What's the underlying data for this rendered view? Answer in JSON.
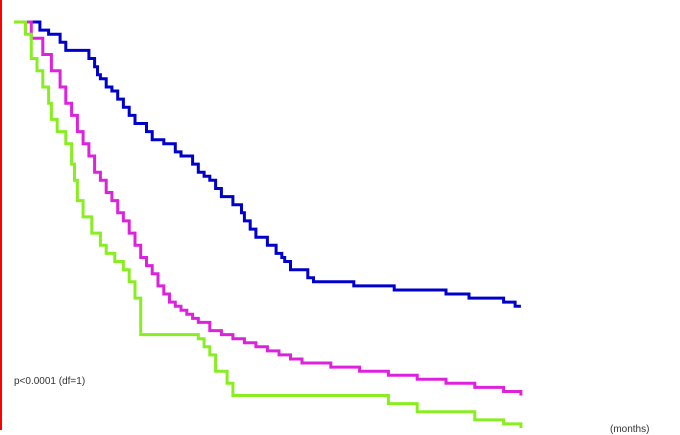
{
  "chart_data": {
    "type": "line",
    "step": true,
    "title": "",
    "xlabel": "(months)",
    "ylabel": "",
    "annotation": "p<0.0001 (df=1)",
    "xlim": [
      0,
      100
    ],
    "ylim": [
      0,
      1
    ],
    "grid": false,
    "axis_color": "#ff0000",
    "series": [
      {
        "color": "#0000cc",
        "x": [
          0,
          4.5,
          6,
          8,
          9,
          13,
          14,
          14.5,
          15,
          16,
          17,
          18,
          19,
          20,
          21,
          23,
          24,
          26,
          28,
          29,
          31,
          32,
          33,
          34,
          35,
          36,
          38,
          39.5,
          40,
          41,
          42,
          44,
          45.5,
          46.5,
          47,
          48,
          51,
          52,
          59,
          61,
          66,
          68,
          75,
          79,
          83,
          85,
          87,
          88
        ],
        "y": [
          1.0,
          0.98,
          0.97,
          0.95,
          0.93,
          0.91,
          0.89,
          0.87,
          0.86,
          0.84,
          0.83,
          0.81,
          0.79,
          0.77,
          0.75,
          0.73,
          0.71,
          0.7,
          0.68,
          0.67,
          0.65,
          0.63,
          0.62,
          0.61,
          0.59,
          0.57,
          0.55,
          0.53,
          0.51,
          0.49,
          0.47,
          0.45,
          0.43,
          0.42,
          0.41,
          0.39,
          0.37,
          0.36,
          0.35,
          0.35,
          0.34,
          0.34,
          0.33,
          0.32,
          0.32,
          0.31,
          0.3,
          0.3
        ]
      },
      {
        "color": "#dd22dd",
        "x": [
          0,
          3,
          5,
          6.5,
          8,
          9,
          10,
          11,
          12,
          13,
          14,
          15,
          16,
          17,
          18,
          19,
          20,
          21,
          22,
          23,
          24,
          25,
          26,
          27,
          28,
          29,
          30,
          31,
          32,
          34,
          36,
          38,
          40,
          42,
          44,
          46,
          48,
          50,
          55,
          60,
          65,
          70,
          75,
          80,
          85,
          88
        ],
        "y": [
          1.0,
          0.96,
          0.92,
          0.88,
          0.84,
          0.8,
          0.77,
          0.73,
          0.7,
          0.67,
          0.63,
          0.61,
          0.58,
          0.56,
          0.53,
          0.51,
          0.48,
          0.45,
          0.42,
          0.4,
          0.38,
          0.35,
          0.33,
          0.31,
          0.3,
          0.29,
          0.28,
          0.27,
          0.26,
          0.24,
          0.23,
          0.22,
          0.21,
          0.2,
          0.19,
          0.18,
          0.17,
          0.16,
          0.15,
          0.14,
          0.13,
          0.12,
          0.11,
          0.1,
          0.09,
          0.08
        ]
      },
      {
        "color": "#88ee22",
        "x": [
          0,
          2,
          3,
          4,
          5,
          6,
          6.5,
          7.5,
          9,
          10,
          10.5,
          11,
          12,
          13.5,
          15,
          16,
          17.5,
          19,
          20,
          21,
          22,
          31,
          32,
          33,
          34,
          35,
          37,
          38,
          40,
          45,
          50,
          55,
          60,
          65,
          70,
          75,
          80,
          85,
          88
        ],
        "y": [
          1.0,
          0.97,
          0.91,
          0.88,
          0.84,
          0.8,
          0.76,
          0.73,
          0.7,
          0.65,
          0.61,
          0.56,
          0.52,
          0.48,
          0.45,
          0.43,
          0.41,
          0.39,
          0.36,
          0.32,
          0.23,
          0.23,
          0.22,
          0.2,
          0.18,
          0.14,
          0.11,
          0.08,
          0.08,
          0.08,
          0.08,
          0.08,
          0.08,
          0.06,
          0.04,
          0.04,
          0.02,
          0.01,
          0.0
        ]
      }
    ]
  }
}
